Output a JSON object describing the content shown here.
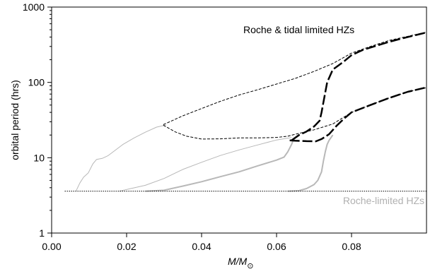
{
  "chart_data": {
    "type": "line",
    "title": "",
    "xlabel": "M/M",
    "xlabel_subscript": "⊙",
    "ylabel": "orbital period (hrs)",
    "xlim": [
      0.0,
      0.1
    ],
    "ylim": [
      1,
      1000
    ],
    "yscale": "log",
    "grid": false,
    "x_tick_labels": [
      "0.00",
      "0.02",
      "0.04",
      "0.06",
      "0.08"
    ],
    "x_ticks": [
      0.0,
      0.02,
      0.04,
      0.06,
      0.08
    ],
    "y_tick_labels": [
      "1",
      "10",
      "100",
      "1000"
    ],
    "y_ticks": [
      1,
      10,
      100,
      1000
    ],
    "annotations": [
      {
        "text": "Roche & tidal limited HZs",
        "color": "#000000"
      },
      {
        "text": "Roche-limited HZs",
        "color": "#b0b0b0"
      }
    ],
    "series": [
      {
        "style": "thin-gray",
        "points": [
          [
            0.0065,
            3.6
          ],
          [
            0.0075,
            4.6
          ],
          [
            0.0085,
            5.5
          ],
          [
            0.0098,
            6.3
          ],
          [
            0.011,
            8.3
          ],
          [
            0.012,
            9.5
          ],
          [
            0.0135,
            9.8
          ],
          [
            0.015,
            10.6
          ],
          [
            0.017,
            12.6
          ],
          [
            0.019,
            15
          ],
          [
            0.022,
            18.3
          ],
          [
            0.025,
            21.8
          ],
          [
            0.028,
            25.5
          ],
          [
            0.0305,
            27.2
          ]
        ]
      },
      {
        "style": "thin-gray",
        "points": [
          [
            0.018,
            3.6
          ],
          [
            0.025,
            4.3
          ],
          [
            0.03,
            5.3
          ],
          [
            0.035,
            7
          ],
          [
            0.04,
            8.7
          ],
          [
            0.045,
            10.7
          ],
          [
            0.05,
            12.7
          ],
          [
            0.055,
            14.8
          ],
          [
            0.06,
            17.2
          ],
          [
            0.064,
            18.5
          ]
        ]
      },
      {
        "style": "mid-gray",
        "points": [
          [
            0.025,
            3.6
          ],
          [
            0.03,
            3.7
          ],
          [
            0.035,
            4.2
          ],
          [
            0.04,
            4.8
          ],
          [
            0.045,
            5.6
          ],
          [
            0.05,
            6.5
          ],
          [
            0.055,
            7.8
          ],
          [
            0.06,
            9.3
          ],
          [
            0.062,
            10.2
          ],
          [
            0.063,
            12
          ],
          [
            0.064,
            15
          ],
          [
            0.0645,
            17.5
          ]
        ]
      },
      {
        "style": "mid-gray",
        "points": [
          [
            0.063,
            3.6
          ],
          [
            0.066,
            3.65
          ],
          [
            0.068,
            3.9
          ],
          [
            0.07,
            4.4
          ],
          [
            0.071,
            5
          ],
          [
            0.072,
            6.5
          ],
          [
            0.0725,
            9
          ],
          [
            0.073,
            12
          ],
          [
            0.0735,
            15
          ],
          [
            0.074,
            17
          ],
          [
            0.075,
            20
          ]
        ]
      },
      {
        "style": "black-dashed-thin",
        "points": [
          [
            0.0298,
            27.5
          ],
          [
            0.035,
            36
          ],
          [
            0.04,
            45
          ],
          [
            0.045,
            56
          ],
          [
            0.05,
            68
          ],
          [
            0.055,
            80
          ],
          [
            0.06,
            95
          ],
          [
            0.065,
            113
          ],
          [
            0.07,
            140
          ],
          [
            0.075,
            178
          ],
          [
            0.08,
            245
          ],
          [
            0.085,
            300
          ],
          [
            0.09,
            360
          ],
          [
            0.1,
            465
          ]
        ]
      },
      {
        "style": "black-dashed-thin",
        "points": [
          [
            0.0298,
            27
          ],
          [
            0.033,
            22
          ],
          [
            0.036,
            19.3
          ],
          [
            0.04,
            17.7
          ],
          [
            0.045,
            17.8
          ],
          [
            0.05,
            18.3
          ],
          [
            0.055,
            18.3
          ],
          [
            0.06,
            18.6
          ],
          [
            0.063,
            19.3
          ],
          [
            0.065,
            20.5
          ],
          [
            0.07,
            23.5
          ],
          [
            0.075,
            28
          ],
          [
            0.08,
            40
          ],
          [
            0.085,
            50
          ],
          [
            0.09,
            62
          ],
          [
            0.095,
            75
          ],
          [
            0.1,
            85
          ]
        ]
      },
      {
        "style": "black-dotted",
        "points": [
          [
            0.0035,
            3.6
          ],
          [
            0.1,
            3.6
          ]
        ]
      },
      {
        "style": "black-long-dash",
        "points": [
          [
            0.0635,
            17
          ],
          [
            0.065,
            16.8
          ],
          [
            0.068,
            16.6
          ],
          [
            0.0705,
            16.5
          ],
          [
            0.072,
            17.7
          ],
          [
            0.074,
            20.5
          ],
          [
            0.076,
            26.5
          ],
          [
            0.078,
            33
          ],
          [
            0.08,
            40
          ],
          [
            0.085,
            50
          ],
          [
            0.09,
            62
          ],
          [
            0.095,
            75
          ],
          [
            0.1,
            86
          ]
        ]
      },
      {
        "style": "black-long-dash",
        "points": [
          [
            0.064,
            17
          ],
          [
            0.066,
            20
          ],
          [
            0.068,
            22.3
          ],
          [
            0.07,
            26
          ],
          [
            0.0715,
            31
          ],
          [
            0.072,
            40
          ],
          [
            0.0735,
            100
          ],
          [
            0.075,
            148
          ],
          [
            0.078,
            190
          ],
          [
            0.08,
            230
          ],
          [
            0.083,
            270
          ],
          [
            0.086,
            300
          ],
          [
            0.09,
            345
          ],
          [
            0.095,
            400
          ],
          [
            0.1,
            460
          ]
        ]
      }
    ]
  }
}
